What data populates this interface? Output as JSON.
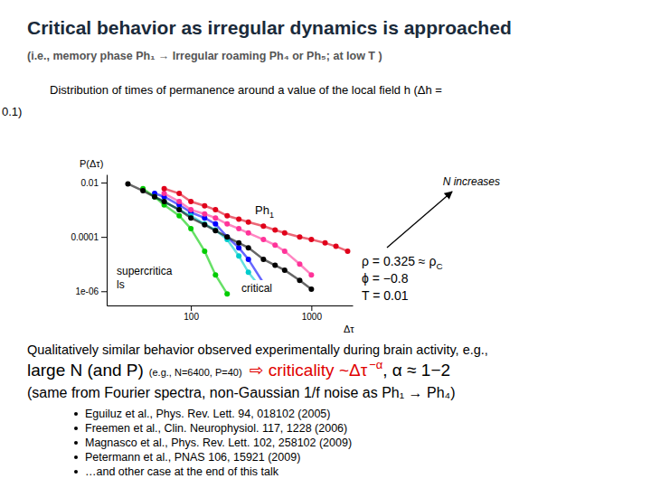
{
  "slide": {
    "title": "Critical behavior as irregular dynamics is approached",
    "subtitle": "(i.e., memory phase Ph₁ → Irregular roaming Ph₄ or Ph₅; at low T )",
    "caption_lines": [
      "Distribution of times of permanence around a value of the local field  h  (Δh =",
      "0.1)"
    ],
    "summary": "Qualitatively similar behavior observed experimentally during brain activity, e.g.,",
    "result": [
      "large N (and P)",
      "(e.g., N=6400, P=40)",
      "⇨ criticality ~Δτ",
      "−α",
      ", α ≈ 1−2"
    ],
    "note": "(same from Fourier spectra, non-Gaussian 1/f noise as Ph₁ → Ph₄)",
    "references": [
      "Eguiluz et al., Phys. Rev. Lett. 94, 018102 (2005)",
      "Freemen et al., Clin. Neurophysiol. 117, 1228 (2006)",
      "Magnasco et al., Phys. Rev. Lett. 102, 258102 (2009)",
      "Petermann et al., PNAS 106, 15921 (2009)",
      "…and other case at the end of this talk"
    ]
  },
  "chart_data": {
    "type": "scatter",
    "log": true,
    "marker": "circle",
    "line_style": "solid",
    "x_label": "Δτ",
    "y_label": "P(Δτ)",
    "x": [
      20,
      30,
      40,
      50,
      60,
      80,
      100,
      130,
      160,
      200,
      250,
      300,
      400,
      500,
      600,
      800,
      1000,
      1300,
      1600,
      2000
    ],
    "series": [
      {
        "color": "#000000",
        "values": [
          null,
          0.009,
          0.005,
          0.003,
          0.002,
          0.001,
          0.0005,
          0.00028,
          0.00017,
          0.0001,
          6e-05,
          4e-05,
          1.5e-05,
          9e-06,
          6e-06,
          2.5e-06,
          1.2e-06,
          null,
          null,
          null
        ]
      },
      {
        "color": "#e0001a",
        "values": [
          null,
          null,
          null,
          null,
          0.006,
          0.004,
          0.002,
          0.0014,
          0.001,
          0.0006,
          0.00045,
          0.00035,
          0.00025,
          0.00018,
          0.00014,
          0.0001,
          8e-05,
          6e-05,
          4.5e-05,
          3e-05
        ]
      },
      {
        "color": "#ff3399",
        "values": [
          null,
          null,
          null,
          null,
          0.004,
          0.002,
          0.001,
          0.0007,
          0.0005,
          0.0003,
          0.0002,
          0.00014,
          8e-05,
          5e-05,
          3e-05,
          1e-05,
          4e-06,
          null,
          null,
          null
        ]
      },
      {
        "color": "#0000ff",
        "values": [
          null,
          null,
          null,
          0.004,
          0.003,
          0.0015,
          0.0008,
          0.0005,
          0.0003,
          0.0001,
          4e-05,
          1.5e-05,
          2e-06,
          null,
          null,
          null,
          null,
          null,
          null,
          null
        ]
      },
      {
        "color": "#00cc00",
        "values": [
          null,
          null,
          0.006,
          0.003,
          0.0015,
          0.0006,
          0.0002,
          3e-05,
          4e-06,
          8e-07,
          null,
          null,
          null,
          null,
          null,
          null,
          null,
          null,
          null,
          null
        ]
      },
      {
        "color": "#00cccc",
        "values": [
          null,
          null,
          null,
          0.003,
          0.002,
          0.001,
          0.0006,
          0.0003,
          0.00018,
          8e-05,
          2e-05,
          5e-06,
          1e-06,
          null,
          null,
          null,
          null,
          null,
          null,
          null
        ]
      }
    ],
    "xlim": [
      20,
      2200
    ],
    "ylim": [
      3e-07,
      0.02
    ],
    "xticks": [
      100,
      1000
    ],
    "yticks": [
      0.01,
      0.0001,
      {
        "value": 1e-06,
        "label": "1e-06"
      }
    ],
    "annotations": [
      {
        "text": "Ph",
        "sub": "1"
      },
      {
        "lines": [
          "supercritica",
          "ls"
        ]
      },
      {
        "text": "critical"
      },
      {
        "text": "N increases"
      },
      {
        "text": "ρ = 0.325 ≈ ρ",
        "sub": "C"
      },
      {
        "text": "ϕ = −0.8"
      },
      {
        "text": "T = 0.01"
      }
    ]
  }
}
